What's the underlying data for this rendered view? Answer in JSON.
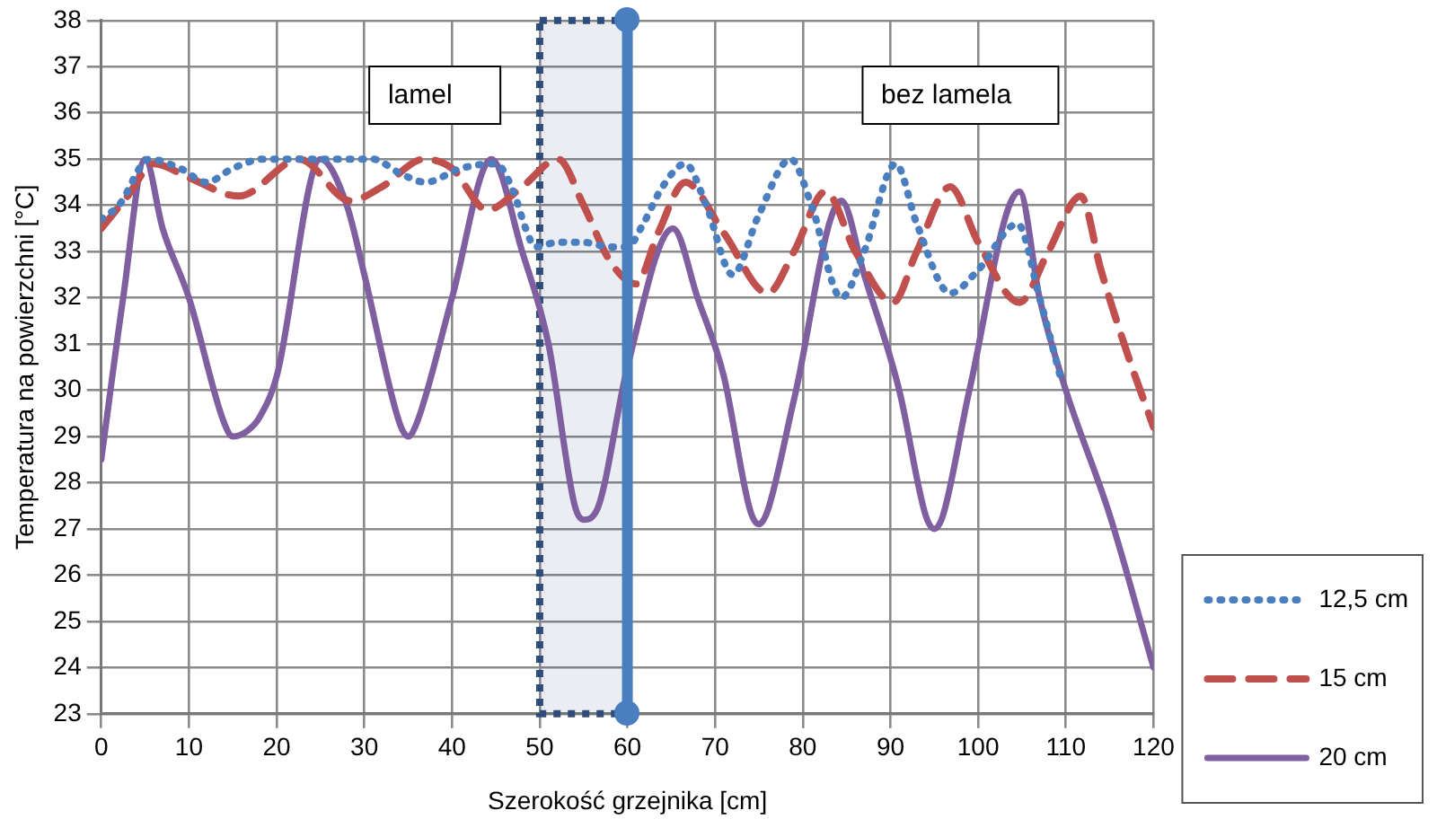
{
  "chart_data": {
    "type": "line",
    "xlabel": "Szerokość grzejnika [cm]",
    "ylabel": "Temperatura na powierzchni [°C]",
    "xlim": [
      0,
      120
    ],
    "xticks": [
      0,
      10,
      20,
      30,
      40,
      50,
      60,
      70,
      80,
      90,
      100,
      110,
      120
    ],
    "ylim": [
      23,
      38
    ],
    "yticks": [
      23,
      24,
      25,
      26,
      27,
      28,
      29,
      30,
      31,
      32,
      33,
      34,
      35,
      36,
      37,
      38
    ],
    "grid": true,
    "legend": "right",
    "marker": "none",
    "series": [
      {
        "name": "12,5 cm",
        "color": "#4a7ebf",
        "line_style": "dotted",
        "x": [
          0,
          2,
          5.5,
          9,
          12,
          15,
          18.5,
          25,
          31,
          34,
          37,
          41,
          45,
          47,
          48.4,
          49.5,
          52,
          55,
          58,
          60,
          61.8,
          64,
          66.6,
          69,
          72,
          75,
          78.6,
          81,
          84.4,
          87,
          90.6,
          93,
          96.8,
          100,
          104.5,
          107,
          109.5
        ],
        "values": [
          33.7,
          34,
          35,
          34.8,
          34.5,
          34.8,
          35,
          35,
          35,
          34.7,
          34.5,
          34.8,
          34.9,
          34.3,
          33.5,
          33.1,
          33.2,
          33.2,
          33.1,
          33.1,
          33.6,
          34.4,
          34.9,
          34,
          32.5,
          33.8,
          35,
          34,
          32,
          33,
          34.9,
          33.6,
          32.1,
          32.6,
          33.6,
          32,
          30.2
        ]
      },
      {
        "name": "15 cm",
        "color": "#c0504d",
        "line_style": "dashed",
        "x": [
          0,
          3,
          6,
          10,
          15.7,
          22.6,
          28.4,
          32,
          36.8,
          40,
          44,
          48,
          52.1,
          55,
          58,
          61,
          63.5,
          66.6,
          71,
          76,
          79,
          82.6,
          86,
          90.3,
          93,
          96.8,
          100,
          104.7,
          108,
          111.7,
          114,
          117,
          120
        ],
        "values": [
          33.5,
          34.2,
          34.9,
          34.6,
          34.2,
          35,
          34.1,
          34.4,
          35,
          34.8,
          33.9,
          34.4,
          35,
          34,
          32.8,
          32.3,
          33.4,
          34.5,
          33.4,
          32.1,
          33,
          34.3,
          33,
          31.9,
          33,
          34.4,
          33.2,
          31.9,
          33,
          34.2,
          32.6,
          30.8,
          29.2
        ]
      },
      {
        "name": "20 cm",
        "color": "#7f5fa0",
        "line_style": "solid",
        "x": [
          0,
          2.5,
          5,
          7,
          10,
          14,
          15,
          16.5,
          18,
          20,
          25,
          28,
          30,
          34,
          35,
          36,
          40,
          44.5,
          48,
          51,
          54,
          55,
          56.5,
          60,
          65.2,
          68,
          71,
          74,
          75,
          76,
          79,
          84.4,
          87,
          91,
          94,
          95,
          96,
          99,
          104.7,
          107,
          110,
          115,
          120
        ],
        "values": [
          28.5,
          32,
          35,
          33.5,
          32,
          29.3,
          29,
          29.1,
          29.4,
          30.3,
          35,
          34,
          32.5,
          29.3,
          29,
          29.3,
          32,
          35,
          33,
          31,
          27.5,
          27.2,
          27.4,
          30.5,
          33.5,
          32,
          30.3,
          27.4,
          27.1,
          27.4,
          29.8,
          34.1,
          32.5,
          30,
          27.3,
          27,
          27.3,
          30,
          34.3,
          32,
          30,
          27.3,
          24
        ]
      }
    ],
    "bands": [
      {
        "axis": "x",
        "from": 50,
        "to": 60,
        "color": "#2e4d7b"
      }
    ],
    "ref_lines": [
      {
        "axis": "x",
        "value": 60,
        "color": "#4a7ebf"
      }
    ],
    "annotations": [
      "lamel",
      "bez lamela"
    ]
  }
}
